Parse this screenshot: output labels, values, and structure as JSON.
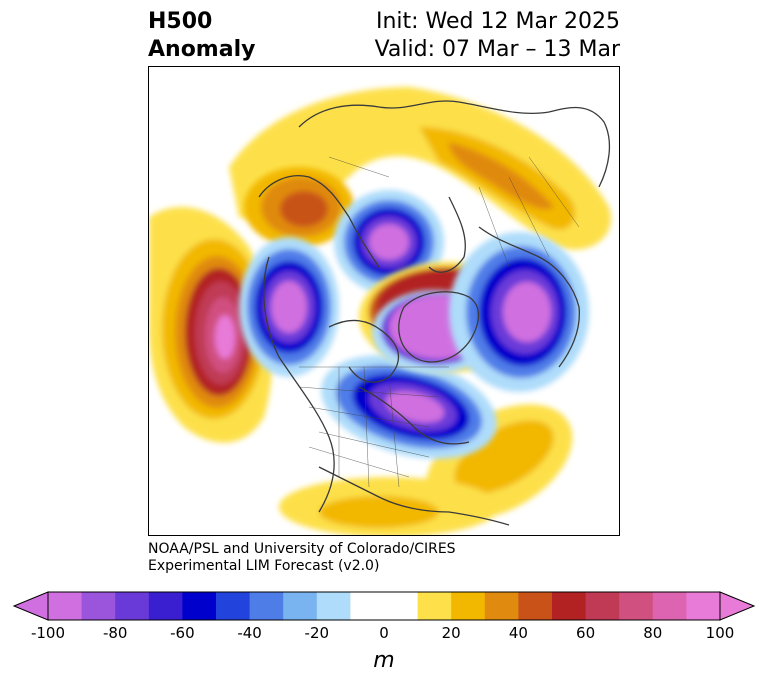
{
  "header": {
    "left_line1": "H500",
    "left_line2": "Anomaly",
    "right_line1": "Init: Wed 12 Mar 2025",
    "right_line2": "Valid: 07 Mar – 13 Mar"
  },
  "credit": {
    "line1": "NOAA/PSL and University of Colorado/CIRES",
    "line2": "Experimental LIM Forecast (v2.0)"
  },
  "colorbar": {
    "unit": "m",
    "ticks": [
      "-100",
      "-80",
      "-60",
      "-40",
      "-20",
      "0",
      "20",
      "40",
      "60",
      "80",
      "100"
    ],
    "colors": [
      "#d070e0",
      "#9b55dd",
      "#6a3ad8",
      "#3a1fd0",
      "#0000cc",
      "#2244dd",
      "#4f7de8",
      "#7ab4f0",
      "#aedcfa",
      "#ffffff",
      "#ffffff",
      "#fde04a",
      "#f2b800",
      "#e08a10",
      "#c85218",
      "#b22222",
      "#c03a55",
      "#d05080",
      "#dc64b0",
      "#e87ad8"
    ]
  },
  "map_data": {
    "anomalies": [
      {
        "region": "north-pacific",
        "sign": "positive",
        "peak": 100
      },
      {
        "region": "western-canada",
        "sign": "negative",
        "peak": -100
      },
      {
        "region": "baffin-bay",
        "sign": "negative",
        "peak": -100
      },
      {
        "region": "eastern-us",
        "sign": "negative",
        "peak": -100
      },
      {
        "region": "greenland",
        "sign": "negative",
        "peak": -100
      },
      {
        "region": "northern-europe",
        "sign": "negative",
        "peak": -100
      },
      {
        "region": "siberia",
        "sign": "positive",
        "peak": 50
      },
      {
        "region": "alaska",
        "sign": "positive",
        "peak": 60
      },
      {
        "region": "subtropical-atlantic",
        "sign": "positive",
        "peak": 30
      }
    ]
  }
}
